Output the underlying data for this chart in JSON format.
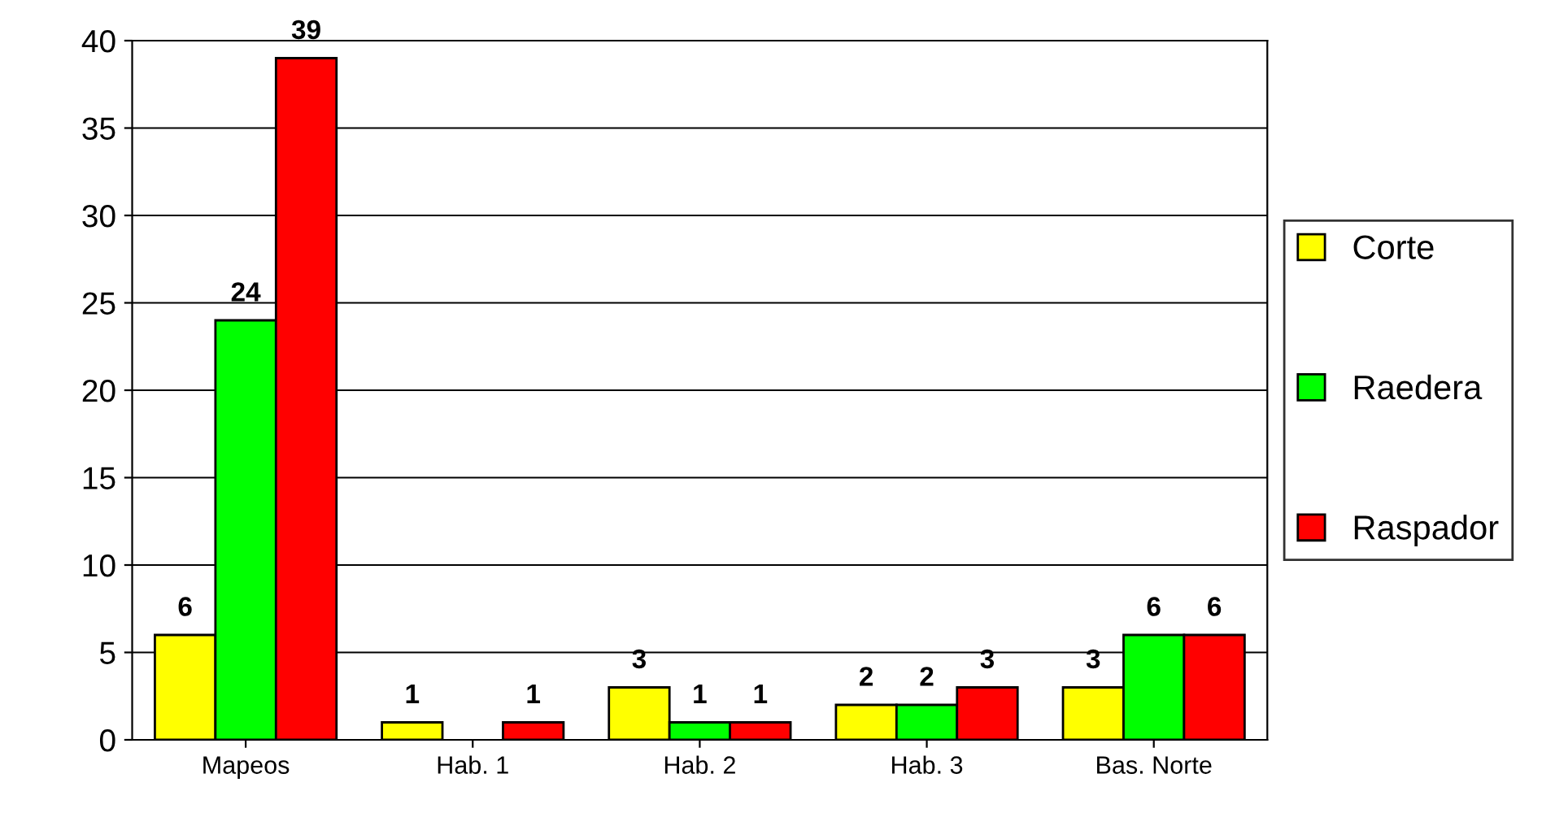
{
  "chart_data": {
    "type": "bar",
    "categories": [
      "Mapeos",
      "Hab. 1",
      "Hab. 2",
      "Hab. 3",
      "Bas. Norte"
    ],
    "series": [
      {
        "name": "Corte",
        "color": "#ffff00",
        "values": [
          6,
          1,
          3,
          2,
          3
        ]
      },
      {
        "name": "Raedera",
        "color": "#00ff00",
        "values": [
          24,
          null,
          1,
          2,
          6
        ]
      },
      {
        "name": "Raspador",
        "color": "#ff0000",
        "values": [
          39,
          1,
          1,
          3,
          6
        ]
      }
    ],
    "ylim": [
      0,
      40
    ],
    "yticks": [
      0,
      5,
      10,
      15,
      20,
      25,
      30,
      35,
      40
    ],
    "grid": "y",
    "legend": "right",
    "data_labels": true
  }
}
